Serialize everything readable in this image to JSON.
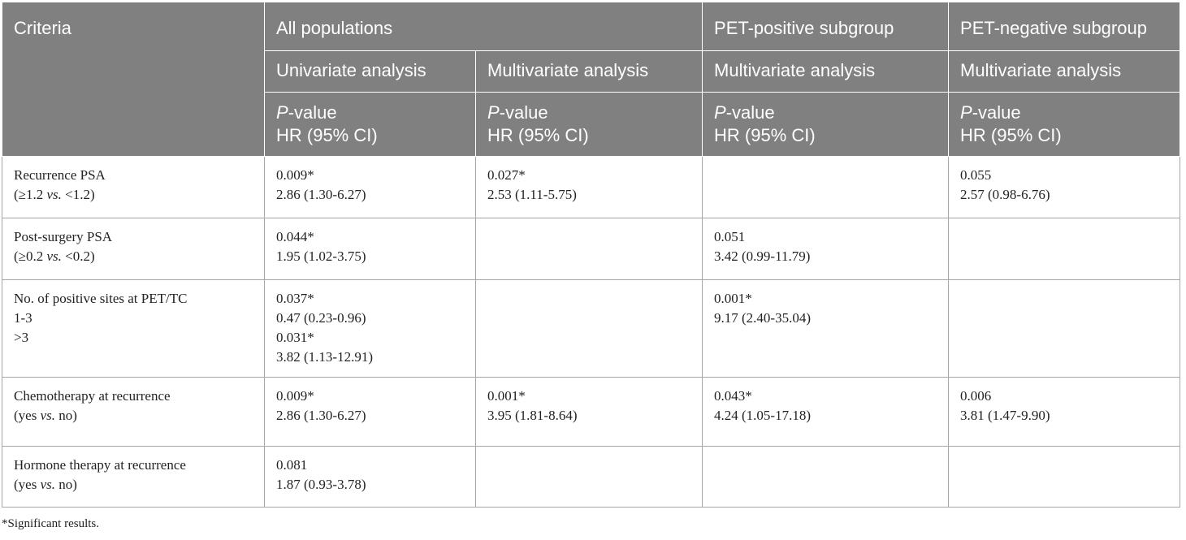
{
  "header": {
    "criteria": "Criteria",
    "all_populations": "All populations",
    "pet_positive": "PET-positive subgroup",
    "pet_negative": "PET-negative subgroup",
    "univariate": "Univariate analysis",
    "multivariate": "Multivariate analysis",
    "p_value_italic": "P",
    "p_value_rest": "-value",
    "hr": "HR (95% CI)"
  },
  "rows": [
    {
      "criteria": [
        "Recurrence PSA",
        "(≥1.2 ",
        "vs.",
        " <1.2)"
      ],
      "univariate": [
        "0.009*",
        "2.86 (1.30-6.27)"
      ],
      "multivariate_all": [
        "0.027*",
        "2.53 (1.11-5.75)"
      ],
      "multivariate_pet_pos": [],
      "multivariate_pet_neg": [
        "0.055",
        "2.57 (0.98-6.76)"
      ]
    },
    {
      "criteria": [
        "Post-surgery PSA",
        "(≥0.2 ",
        "vs.",
        " <0.2)"
      ],
      "univariate": [
        "0.044*",
        "1.95 (1.02-3.75)"
      ],
      "multivariate_all": [],
      "multivariate_pet_pos": [
        "0.051",
        "3.42 (0.99-11.79)"
      ],
      "multivariate_pet_neg": []
    },
    {
      "criteria": [
        "No. of positive sites at PET/TC",
        "1-3",
        ">3"
      ],
      "univariate": [
        "0.037*",
        "0.47 (0.23-0.96)",
        "0.031*",
        "3.82 (1.13-12.91)"
      ],
      "multivariate_all": [],
      "multivariate_pet_pos": [
        "0.001*",
        "9.17 (2.40-35.04)"
      ],
      "multivariate_pet_neg": []
    },
    {
      "criteria": [
        "Chemotherapy at recurrence",
        "(yes ",
        "vs.",
        " no)"
      ],
      "univariate": [
        "0.009*",
        "2.86 (1.30-6.27)"
      ],
      "multivariate_all": [
        "0.001*",
        "3.95 (1.81-8.64)"
      ],
      "multivariate_pet_pos": [
        "0.043*",
        "4.24 (1.05-17.18)"
      ],
      "multivariate_pet_neg": [
        "0.006",
        "3.81 (1.47-9.90)"
      ]
    },
    {
      "criteria": [
        "Hormone therapy at recurrence",
        "(yes ",
        "vs.",
        " no)"
      ],
      "univariate": [
        "0.081",
        "1.87 (0.93-3.78)"
      ],
      "multivariate_all": [],
      "multivariate_pet_pos": [],
      "multivariate_pet_neg": []
    }
  ],
  "footnote": "*Significant results."
}
